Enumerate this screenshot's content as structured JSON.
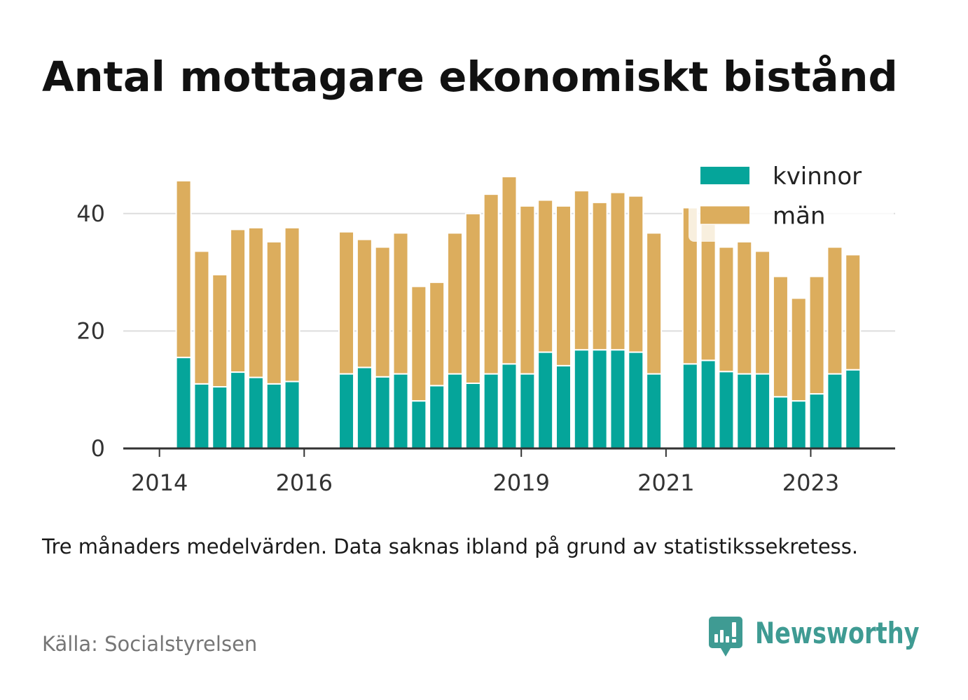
{
  "chart_data": {
    "type": "bar",
    "stacked": true,
    "title": "Antal mottagare ekonomiskt bistånd",
    "x": [
      "2014-05",
      "2014-08",
      "2014-11",
      "2015-02",
      "2015-05",
      "2015-08",
      "2015-11",
      "2016-08",
      "2016-11",
      "2017-02",
      "2017-05",
      "2017-08",
      "2017-11",
      "2018-02",
      "2018-05",
      "2018-08",
      "2018-11",
      "2019-02",
      "2019-05",
      "2019-08",
      "2019-11",
      "2020-02",
      "2020-05",
      "2020-08",
      "2020-11",
      "2021-05",
      "2021-08",
      "2021-11",
      "2022-02",
      "2022-05",
      "2022-08",
      "2022-11",
      "2023-02",
      "2023-05",
      "2023-08"
    ],
    "series": [
      {
        "name": "kvinnor",
        "color": "#05a59a",
        "values": [
          15.5,
          11.0,
          10.5,
          13.0,
          12.1,
          11.0,
          11.4,
          12.7,
          13.8,
          12.2,
          12.7,
          8.1,
          10.7,
          12.7,
          11.1,
          12.7,
          14.4,
          12.7,
          16.4,
          14.1,
          16.8,
          16.8,
          16.8,
          16.4,
          12.7,
          14.4,
          15.0,
          13.1,
          12.7,
          12.7,
          8.8,
          8.1,
          9.3,
          12.7,
          13.4
        ]
      },
      {
        "name": "män",
        "color": "#dcad5d",
        "values": [
          30.1,
          22.6,
          19.1,
          24.3,
          25.5,
          24.2,
          26.2,
          24.2,
          21.8,
          22.1,
          24.0,
          19.5,
          17.6,
          24.0,
          28.9,
          30.6,
          31.9,
          28.6,
          25.9,
          27.2,
          27.1,
          25.1,
          26.8,
          26.6,
          24.0,
          26.6,
          23.2,
          21.2,
          22.5,
          20.9,
          20.5,
          17.5,
          20.0,
          21.6,
          19.6
        ]
      }
    ],
    "xticks": [
      "2014",
      "2016",
      "2019",
      "2021",
      "2023"
    ],
    "yticks": [
      0,
      20,
      40
    ],
    "xlim": [
      "2013-07",
      "2024-03"
    ],
    "ylim": [
      0,
      50
    ],
    "grid": true,
    "legend": "top-right"
  },
  "note": "Tre månaders medelvärden. Data saknas ibland på grund av statistikssekretess.",
  "source": "Källa: Socialstyrelsen",
  "brand": {
    "name": "Newsworthy",
    "icon": "newsworthy-logo-icon"
  },
  "colors": {
    "title": "#111111",
    "axis": "#333333",
    "grid": "#dddddd",
    "source": "#767676",
    "brand": "#3f9b93",
    "background": "#ffffff"
  }
}
